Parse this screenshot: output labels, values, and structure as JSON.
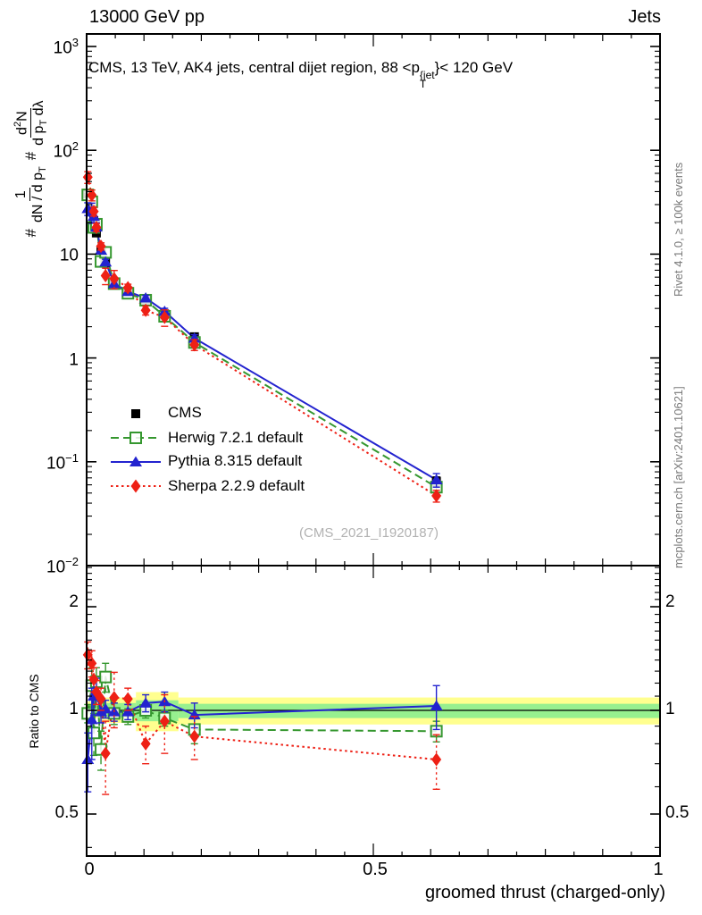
{
  "header": {
    "left": "13000 GeV pp",
    "right": "Jets"
  },
  "title": {
    "prefix": "CMS, 13 TeV, AK4 jets, central dijet region, 88 <p",
    "sup_text": "{jet",
    "sub_text": "T",
    "suffix": "}< 120 GeV"
  },
  "ylabel": {
    "hash1": "#",
    "frac1_num": "1",
    "frac1_den_a": "dN / d p",
    "frac1_den_sub": "T",
    "hash2": "#",
    "frac2_num_a": "d",
    "frac2_num_sup": "2",
    "frac2_num_b": "N",
    "frac2_den_a": "d p",
    "frac2_den_sub": "T",
    "frac2_den_b": " dλ"
  },
  "ratio_ylabel": "Ratio to CMS",
  "xlabel": "groomed thrust (charged-only)",
  "watermark": "(CMS_2021_I1920187)",
  "side_notes": {
    "top": "Rivet 4.1.0, ≥ 100k events",
    "bottom": "mcplots.cern.ch [arXiv:2401.10621]"
  },
  "legend": [
    {
      "label": "CMS",
      "color": "#000000",
      "marker": "square",
      "line": "none"
    },
    {
      "label": "Herwig 7.2.1 default",
      "color": "#35972f",
      "marker": "square-open",
      "line": "dashed"
    },
    {
      "label": "Pythia 8.315 default",
      "color": "#2323cf",
      "marker": "triangle",
      "line": "solid"
    },
    {
      "label": "Sherpa 2.2.9 default",
      "color": "#ee2015",
      "marker": "diamond",
      "line": "dotted"
    }
  ],
  "axes": {
    "x": {
      "min": 0,
      "max": 1,
      "tick_labels": [
        "0",
        "0.5",
        "1"
      ]
    },
    "y_main": {
      "scale": "log",
      "tick_labels": [
        {
          "base": "10",
          "exp": "3"
        },
        {
          "base": "10",
          "exp": "2"
        },
        {
          "base": "10",
          "exp": ""
        },
        {
          "base": "1",
          "exp": ""
        },
        {
          "base": "10",
          "exp": "−1"
        },
        {
          "base": "10",
          "exp": "−2"
        }
      ]
    },
    "y_ratio": {
      "scale": "log",
      "tick_labels": [
        "2",
        "1",
        "0.5"
      ]
    }
  },
  "chart_data": [
    {
      "type": "scatter",
      "panel": "main",
      "title": "CMS, 13 TeV, AK4 jets, central dijet region, 88 < pT(jet) < 120 GeV",
      "xlabel": "groomed thrust (charged-only)",
      "ylabel": "# 1/(dN/dpT) # d2N/(dpT dLambda)",
      "xlim": [
        0,
        1
      ],
      "ylim": [
        0.01,
        1320
      ],
      "x": [
        0.002,
        0.009,
        0.0125,
        0.017,
        0.025,
        0.033,
        0.048,
        0.072,
        0.103,
        0.136,
        0.188,
        0.61
      ],
      "series": [
        {
          "name": "CMS",
          "values": [
            38,
            27,
            21,
            16,
            11,
            8.3,
            5.3,
            4.4,
            3.6,
            2.65,
            1.6,
            0.065
          ],
          "err_rel": [
            0.05,
            0.05,
            0.04,
            0.04,
            0.04,
            0.04,
            0.04,
            0.04,
            0.04,
            0.05,
            0.06,
            0.1
          ]
        },
        {
          "name": "Herwig 7.2.1 default",
          "values": [
            37.2,
            31.9,
            18.1,
            19.4,
            8.5,
            10.4,
            5.2,
            4.2,
            3.6,
            2.52,
            1.41,
            0.057
          ],
          "err_rel": [
            0.06,
            0.15,
            0.12,
            0.12,
            0.1,
            0.12,
            0.07,
            0.05,
            0.05,
            0.05,
            0.08,
            0.06
          ]
        },
        {
          "name": "Pythia 8.315 default",
          "values": [
            27.4,
            25.4,
            23.1,
            18.2,
            10.9,
            8.4,
            5.2,
            4.36,
            3.78,
            2.81,
            1.55,
            0.067
          ],
          "err_rel": [
            0.14,
            0.22,
            0.13,
            0.1,
            0.07,
            0.06,
            0.06,
            0.05,
            0.06,
            0.07,
            0.08,
            0.15
          ]
        },
        {
          "name": "Sherpa 2.2.9 default",
          "values": [
            55.1,
            37,
            25.8,
            18.1,
            11.9,
            6.2,
            5.8,
            4.75,
            2.88,
            2.46,
            1.34,
            0.047
          ],
          "err_rel": [
            0.13,
            0.12,
            0.1,
            0.09,
            0.08,
            0.18,
            0.2,
            0.08,
            0.1,
            0.18,
            0.12,
            0.13
          ]
        }
      ]
    },
    {
      "type": "ratio",
      "panel": "ratio",
      "ylabel": "Ratio to CMS",
      "xlim": [
        0,
        1
      ],
      "ylim": [
        0.38,
        2.63
      ],
      "x": [
        0.002,
        0.009,
        0.0125,
        0.017,
        0.025,
        0.033,
        0.048,
        0.072,
        0.103,
        0.136,
        0.188,
        0.61
      ],
      "series": [
        {
          "name": "Herwig 7.2.1 default",
          "ratio": [
            0.98,
            1.18,
            0.86,
            1.21,
            0.77,
            1.25,
            0.98,
            0.96,
            1.0,
            0.95,
            0.88,
            0.87
          ],
          "err": [
            0.06,
            0.15,
            0.12,
            0.12,
            0.1,
            0.12,
            0.07,
            0.05,
            0.05,
            0.05,
            0.08,
            0.06
          ]
        },
        {
          "name": "Pythia 8.315 default",
          "ratio": [
            0.72,
            0.94,
            1.1,
            1.14,
            0.99,
            1.01,
            0.99,
            0.99,
            1.05,
            1.06,
            0.97,
            1.03
          ],
          "err": [
            0.14,
            0.22,
            0.13,
            0.1,
            0.07,
            0.06,
            0.06,
            0.05,
            0.06,
            0.07,
            0.08,
            0.15
          ]
        },
        {
          "name": "Sherpa 2.2.9 default",
          "ratio": [
            1.45,
            1.37,
            1.23,
            1.13,
            1.08,
            0.75,
            1.09,
            1.08,
            0.8,
            0.93,
            0.84,
            0.72
          ],
          "err": [
            0.13,
            0.12,
            0.1,
            0.09,
            0.08,
            0.18,
            0.2,
            0.08,
            0.1,
            0.18,
            0.12,
            0.13
          ]
        }
      ],
      "bands": {
        "yellow": {
          "color": "#ffff8f",
          "segments": [
            [
              0,
              0.02,
              0.95,
              1.06
            ],
            [
              0.02,
              0.086,
              0.92,
              1.09
            ],
            [
              0.086,
              0.16,
              0.87,
              1.13
            ],
            [
              0.16,
              1.0,
              0.91,
              1.09
            ]
          ]
        },
        "green": {
          "color": "#97f08f",
          "segments": [
            [
              0,
              0.02,
              0.97,
              1.03
            ],
            [
              0.02,
              0.086,
              0.95,
              1.05
            ],
            [
              0.086,
              0.16,
              0.93,
              1.07
            ],
            [
              0.16,
              1.0,
              0.95,
              1.045
            ]
          ]
        }
      }
    }
  ]
}
